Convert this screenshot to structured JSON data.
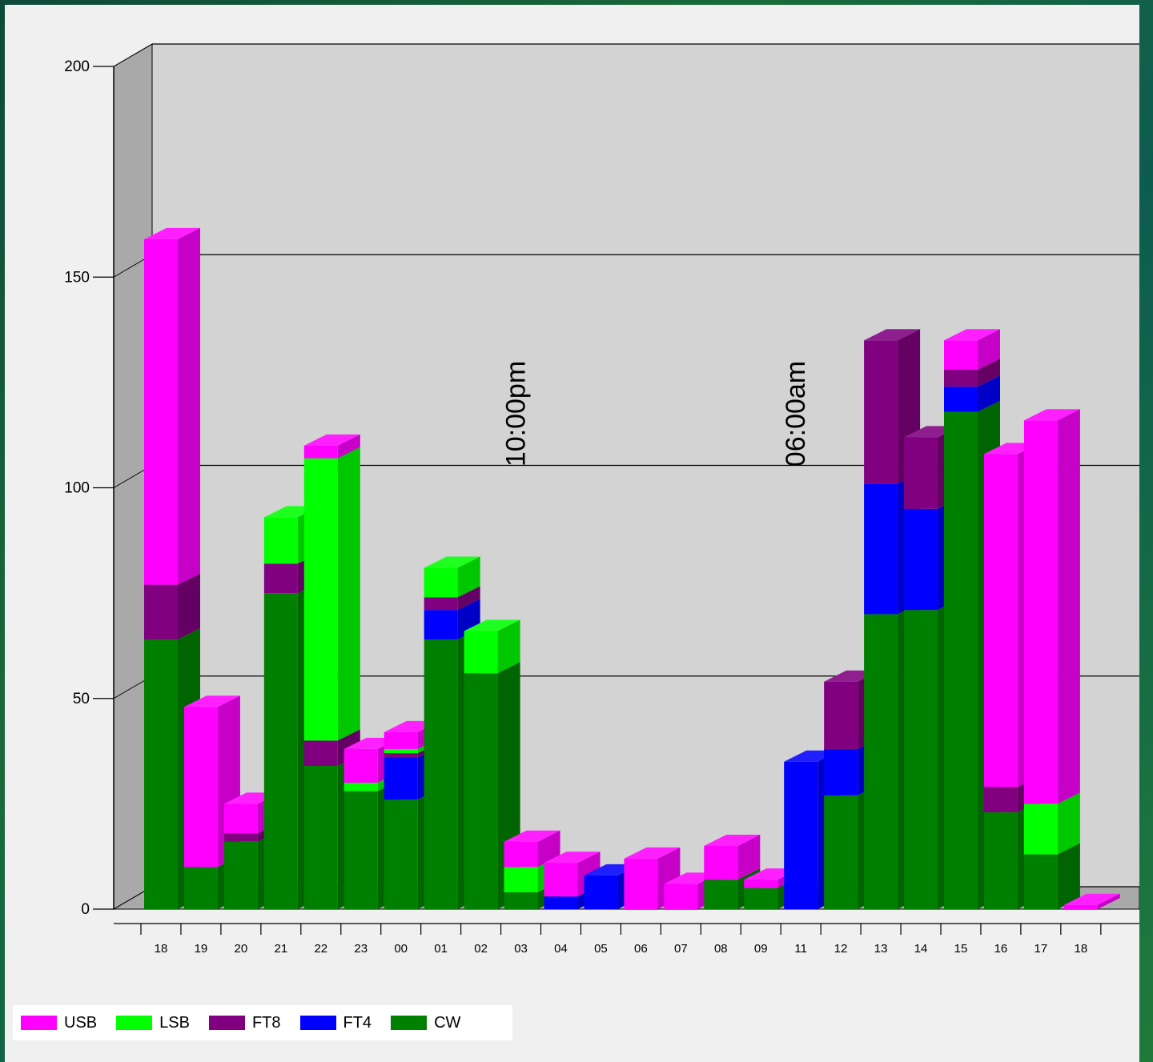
{
  "chart_data": {
    "type": "bar",
    "stacked": true,
    "three_d": true,
    "categories": [
      "18",
      "19",
      "20",
      "21",
      "22",
      "23",
      "00",
      "01",
      "02",
      "03",
      "04",
      "05",
      "06",
      "07",
      "08",
      "09",
      "11",
      "12",
      "13",
      "14",
      "15",
      "16",
      "17",
      "18"
    ],
    "series": [
      {
        "name": "CW",
        "color": "#008000",
        "values": [
          64,
          10,
          16,
          75,
          34,
          28,
          26,
          64,
          56,
          4,
          0,
          0,
          0,
          0,
          7,
          5,
          0,
          27,
          70,
          71,
          118,
          23,
          13,
          0
        ]
      },
      {
        "name": "FT4",
        "color": "#0000ff",
        "values": [
          0,
          0,
          0,
          0,
          0,
          0,
          10,
          7,
          0,
          0,
          3,
          8,
          0,
          0,
          0,
          0,
          35,
          11,
          31,
          24,
          6,
          0,
          0,
          0
        ]
      },
      {
        "name": "FT8",
        "color": "#800080",
        "values": [
          13,
          0,
          2,
          7,
          6,
          0,
          1,
          3,
          0,
          0,
          0,
          0,
          0,
          0,
          0,
          0,
          0,
          16,
          34,
          17,
          4,
          6,
          0,
          0
        ]
      },
      {
        "name": "LSB",
        "color": "#00ff00",
        "values": [
          0,
          0,
          0,
          11,
          67,
          2,
          1,
          7,
          10,
          6,
          0,
          0,
          0,
          0,
          0,
          0,
          0,
          0,
          0,
          0,
          0,
          0,
          12,
          0
        ]
      },
      {
        "name": "USB",
        "color": "#ff00ff",
        "values": [
          82,
          38,
          7,
          0,
          3,
          8,
          4,
          0,
          0,
          6,
          8,
          0,
          12,
          6,
          8,
          2,
          0,
          0,
          0,
          0,
          7,
          79,
          91,
          1
        ]
      }
    ],
    "ylim": [
      0,
      200
    ],
    "yticks": [
      0,
      50,
      100,
      150,
      200
    ],
    "legend_position": "bottom-left",
    "grid": true,
    "annotations": [
      {
        "text": "10:00pm",
        "x": "03"
      },
      {
        "text": "06:00am",
        "x": "11"
      }
    ]
  },
  "legend": {
    "items": [
      {
        "label": "USB",
        "color": "#ff00ff"
      },
      {
        "label": "LSB",
        "color": "#00ff00"
      },
      {
        "label": "FT8",
        "color": "#800080"
      },
      {
        "label": "FT4",
        "color": "#0000ff"
      },
      {
        "label": "CW",
        "color": "#008000"
      }
    ]
  }
}
